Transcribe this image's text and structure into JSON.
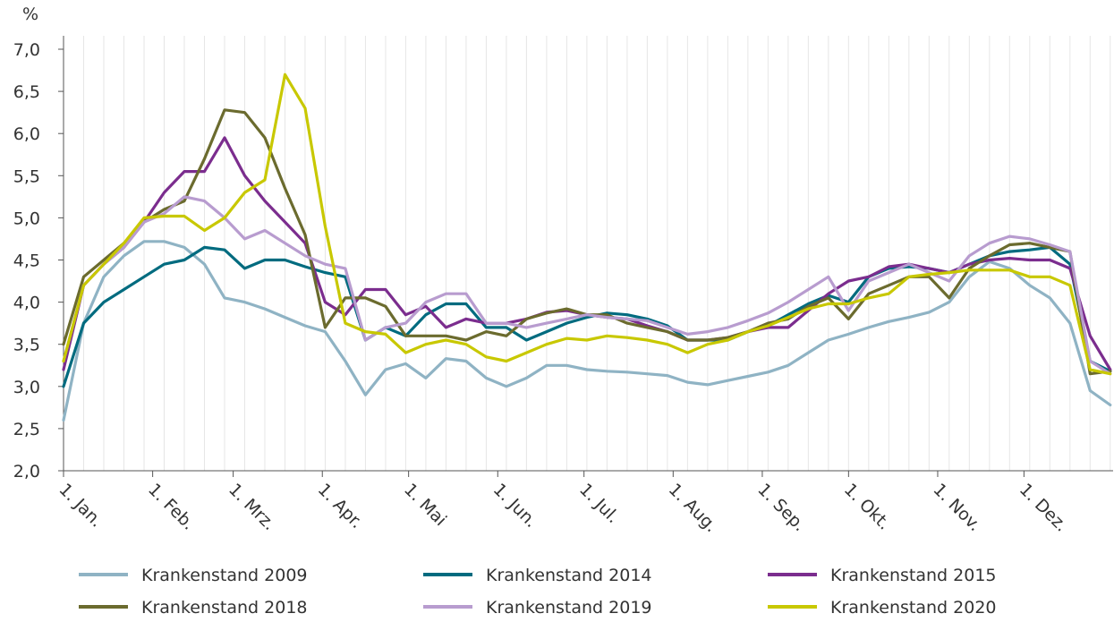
{
  "chart_data": {
    "type": "line",
    "ylabel": "%",
    "x": [
      1,
      8,
      15,
      22,
      29,
      36,
      43,
      50,
      57,
      64,
      71,
      78,
      85,
      92,
      99,
      106,
      113,
      120,
      127,
      134,
      141,
      148,
      155,
      162,
      169,
      176,
      183,
      190,
      197,
      204,
      211,
      218,
      225,
      232,
      239,
      246,
      253,
      260,
      267,
      274,
      281,
      288,
      295,
      302,
      309,
      316,
      323,
      330,
      337,
      344,
      351,
      358,
      365
    ],
    "xlim": [
      1,
      366
    ],
    "xticks": [
      {
        "value": 1,
        "label": "1. Jan."
      },
      {
        "value": 32,
        "label": "1. Feb."
      },
      {
        "value": 60,
        "label": "1. Mrz."
      },
      {
        "value": 91,
        "label": "1. Apr."
      },
      {
        "value": 121,
        "label": "1. Mai"
      },
      {
        "value": 152,
        "label": "1. Jun."
      },
      {
        "value": 182,
        "label": "1. Jul."
      },
      {
        "value": 213,
        "label": "1. Aug."
      },
      {
        "value": 244,
        "label": "1. Sep."
      },
      {
        "value": 274,
        "label": "1. Okt."
      },
      {
        "value": 305,
        "label": "1. Nov."
      },
      {
        "value": 335,
        "label": "1. Dez."
      }
    ],
    "ylim": [
      2,
      7
    ],
    "yticks": [
      {
        "value": 2,
        "label": "2,0"
      },
      {
        "value": 2.5,
        "label": "2,5"
      },
      {
        "value": 3,
        "label": "3,0"
      },
      {
        "value": 3.5,
        "label": "3,5"
      },
      {
        "value": 4,
        "label": "4,0"
      },
      {
        "value": 4.5,
        "label": "4,5"
      },
      {
        "value": 5,
        "label": "5,0"
      },
      {
        "value": 5.5,
        "label": "5,5"
      },
      {
        "value": 6,
        "label": "6,0"
      },
      {
        "value": 6.5,
        "label": "6,5"
      },
      {
        "value": 7,
        "label": "7,0"
      }
    ],
    "grid": true,
    "series": [
      {
        "name": "Krankenstand 2009",
        "color": "#8fb3c4",
        "values": [
          2.6,
          3.75,
          4.3,
          4.55,
          4.72,
          4.72,
          4.65,
          4.45,
          4.05,
          4.0,
          3.92,
          3.82,
          3.72,
          3.65,
          3.3,
          2.9,
          3.2,
          3.27,
          3.1,
          3.33,
          3.3,
          3.1,
          3.0,
          3.1,
          3.25,
          3.25,
          3.2,
          3.18,
          3.17,
          3.15,
          3.13,
          3.05,
          3.02,
          3.07,
          3.12,
          3.17,
          3.25,
          3.4,
          3.55,
          3.62,
          3.7,
          3.77,
          3.82,
          3.88,
          4.0,
          4.3,
          4.48,
          4.4,
          4.2,
          4.05,
          3.75,
          2.95,
          2.78
        ]
      },
      {
        "name": "Krankenstand 2014",
        "color": "#006b7f",
        "values": [
          3.0,
          3.75,
          4.0,
          4.15,
          4.3,
          4.45,
          4.5,
          4.65,
          4.62,
          4.4,
          4.5,
          4.5,
          4.42,
          4.35,
          4.3,
          3.55,
          3.7,
          3.6,
          3.85,
          3.98,
          3.98,
          3.7,
          3.7,
          3.55,
          3.65,
          3.75,
          3.82,
          3.87,
          3.85,
          3.8,
          3.72,
          3.55,
          3.55,
          3.55,
          3.65,
          3.72,
          3.85,
          3.98,
          4.08,
          4.0,
          4.3,
          4.4,
          4.42,
          4.4,
          4.35,
          4.45,
          4.55,
          4.6,
          4.62,
          4.65,
          4.45,
          3.3,
          3.18
        ]
      },
      {
        "name": "Krankenstand 2015",
        "color": "#7b2d8e",
        "values": [
          3.2,
          4.2,
          4.45,
          4.65,
          4.95,
          5.3,
          5.55,
          5.55,
          5.95,
          5.5,
          5.2,
          4.95,
          4.7,
          4.0,
          3.85,
          4.15,
          4.15,
          3.85,
          3.95,
          3.7,
          3.8,
          3.75,
          3.75,
          3.8,
          3.88,
          3.9,
          3.85,
          3.82,
          3.8,
          3.72,
          3.65,
          3.55,
          3.55,
          3.58,
          3.65,
          3.7,
          3.7,
          3.9,
          4.1,
          4.25,
          4.3,
          4.42,
          4.45,
          4.4,
          4.35,
          4.45,
          4.5,
          4.52,
          4.5,
          4.5,
          4.4,
          3.6,
          3.2
        ]
      },
      {
        "name": "Krankenstand 2018",
        "color": "#6b6b2e",
        "values": [
          3.5,
          4.3,
          4.5,
          4.7,
          4.95,
          5.1,
          5.2,
          5.7,
          6.28,
          6.25,
          5.95,
          5.35,
          4.8,
          3.7,
          4.05,
          4.05,
          3.95,
          3.6,
          3.6,
          3.6,
          3.55,
          3.65,
          3.6,
          3.8,
          3.87,
          3.92,
          3.85,
          3.85,
          3.75,
          3.7,
          3.65,
          3.55,
          3.55,
          3.58,
          3.65,
          3.75,
          3.8,
          3.95,
          4.05,
          3.8,
          4.1,
          4.2,
          4.3,
          4.3,
          4.05,
          4.4,
          4.55,
          4.68,
          4.7,
          4.65,
          4.6,
          3.15,
          3.18
        ]
      },
      {
        "name": "Krankenstand 2019",
        "color": "#b89ccf",
        "values": [
          3.3,
          4.2,
          4.45,
          4.65,
          4.95,
          5.05,
          5.25,
          5.2,
          5.0,
          4.75,
          4.85,
          4.7,
          4.55,
          4.45,
          4.4,
          3.55,
          3.7,
          3.75,
          4.0,
          4.1,
          4.1,
          3.75,
          3.75,
          3.7,
          3.75,
          3.8,
          3.85,
          3.82,
          3.8,
          3.78,
          3.7,
          3.62,
          3.65,
          3.7,
          3.78,
          3.87,
          4.0,
          4.15,
          4.3,
          3.9,
          4.25,
          4.35,
          4.45,
          4.35,
          4.25,
          4.55,
          4.7,
          4.78,
          4.75,
          4.68,
          4.6,
          3.3,
          3.15
        ]
      },
      {
        "name": "Krankenstand 2020",
        "color": "#c8c800",
        "values": [
          3.3,
          4.2,
          4.45,
          4.7,
          5.0,
          5.02,
          5.02,
          4.85,
          5.0,
          5.3,
          5.45,
          6.7,
          6.3,
          4.9,
          3.75,
          3.65,
          3.62,
          3.4,
          3.5,
          3.55,
          3.5,
          3.35,
          3.3,
          3.4,
          3.5,
          3.57,
          3.55,
          3.6,
          3.58,
          3.55,
          3.5,
          3.4,
          3.5,
          3.55,
          3.65,
          3.72,
          3.82,
          3.92,
          3.98,
          3.98,
          4.05,
          4.1,
          4.3,
          4.33,
          4.35,
          4.38,
          4.38,
          4.38,
          4.3,
          4.3,
          4.2,
          3.2,
          3.15
        ]
      }
    ]
  }
}
